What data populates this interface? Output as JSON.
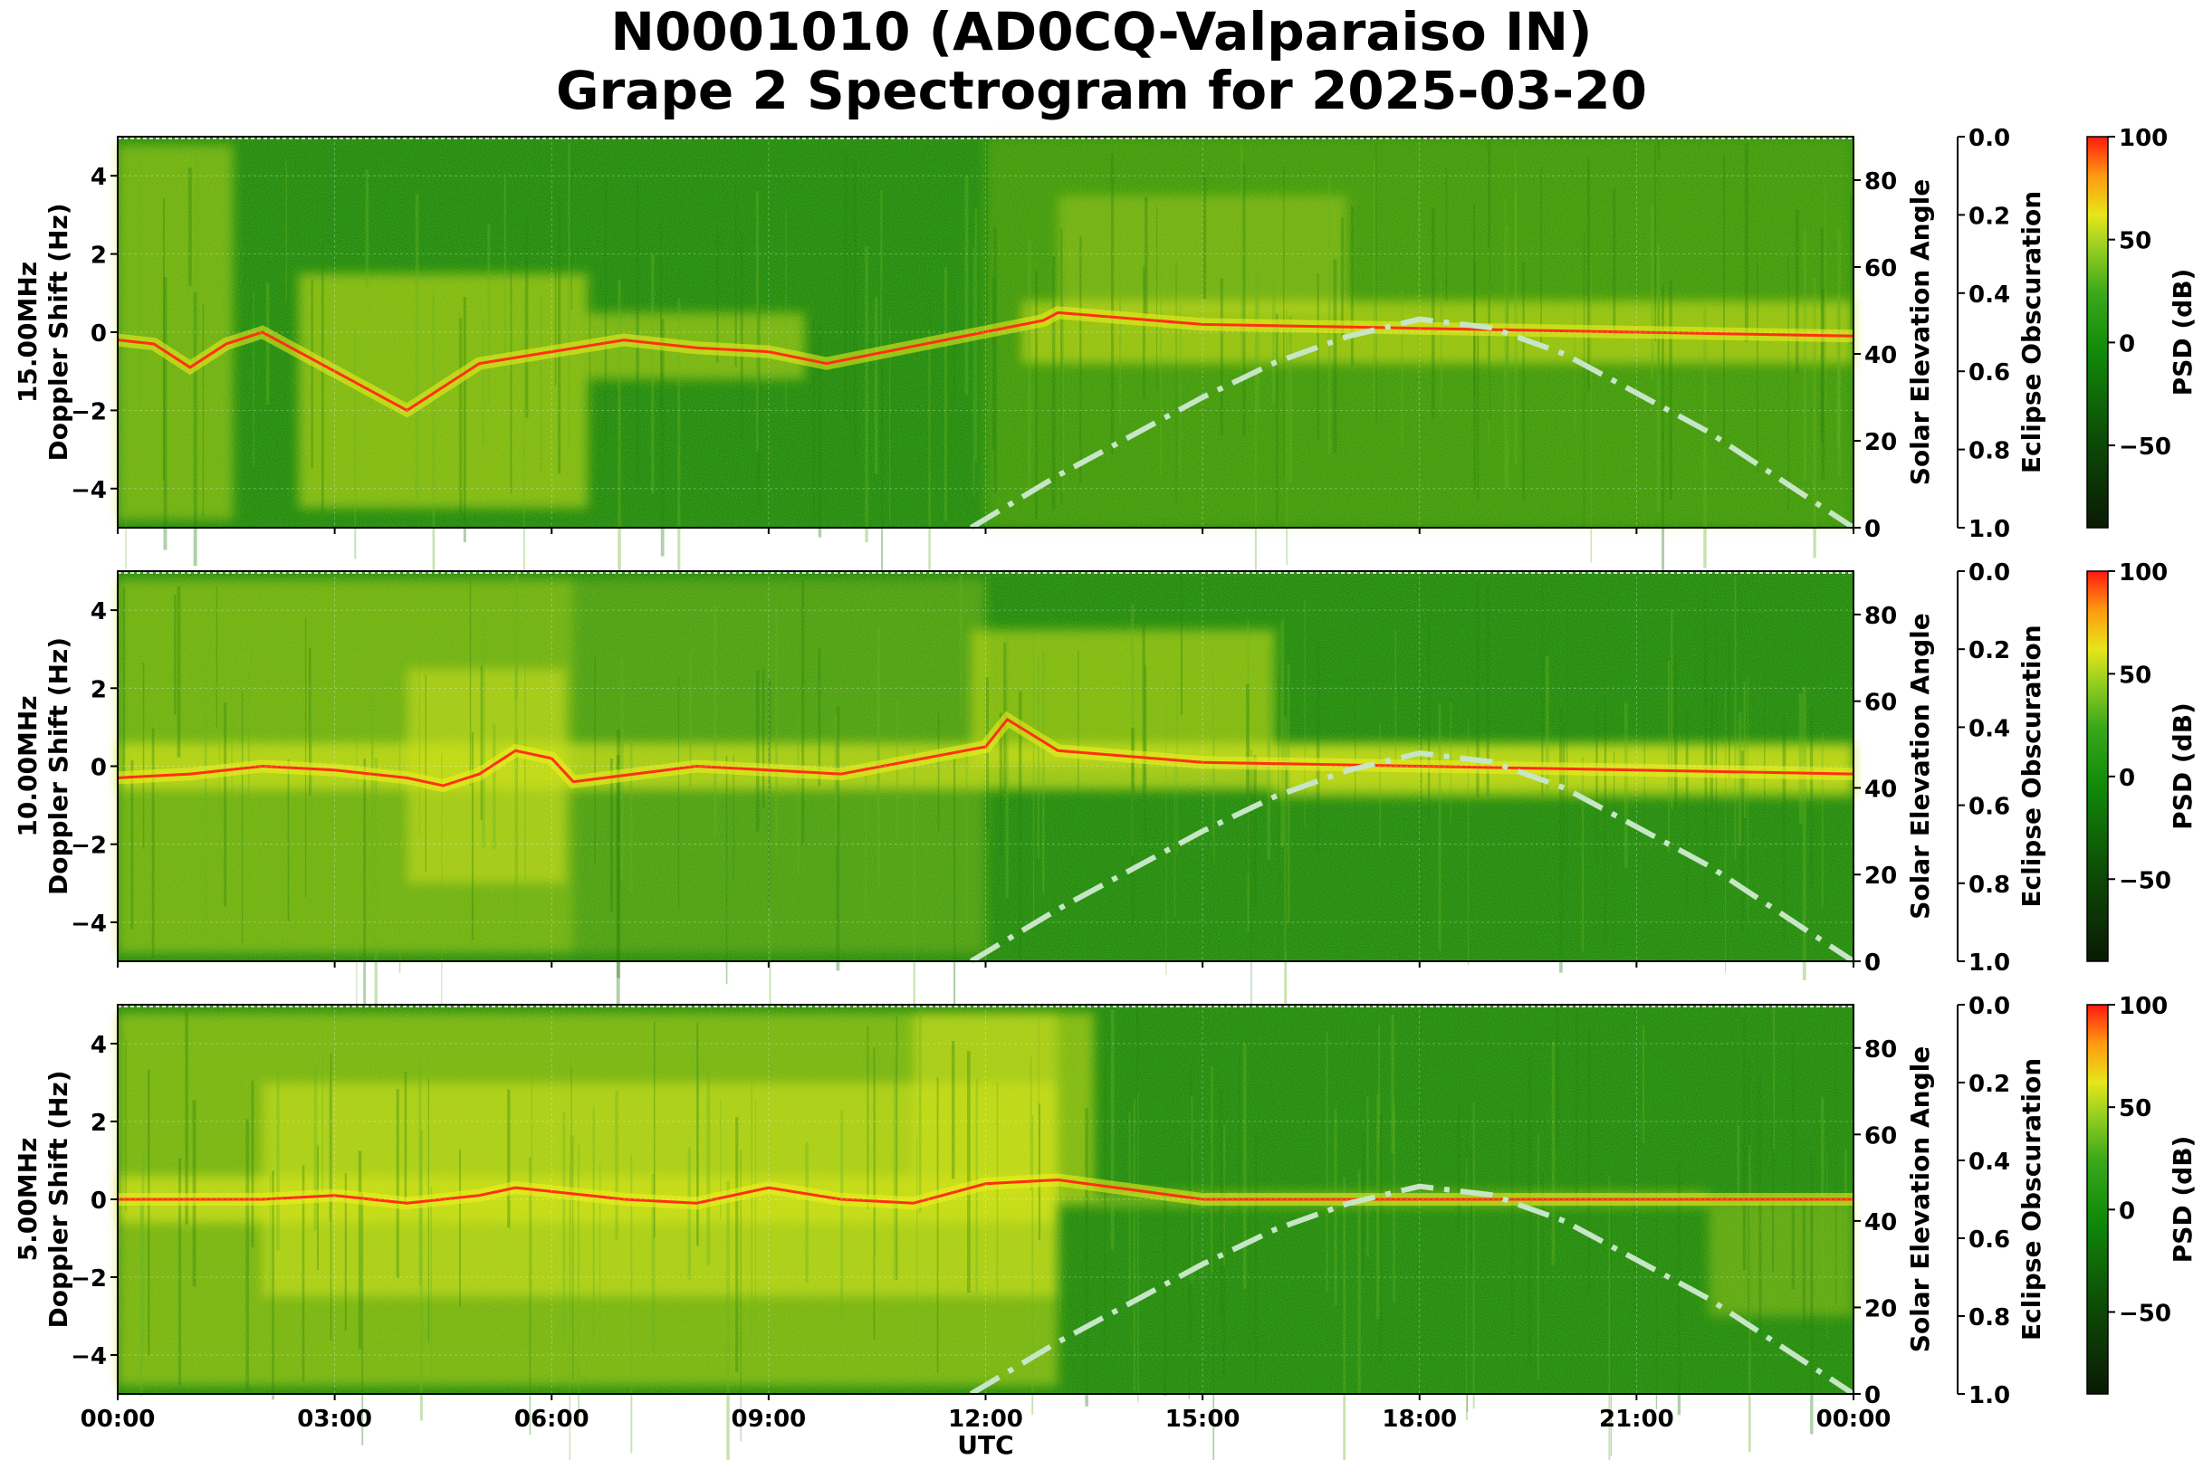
{
  "title_line1": "N0001010 (AD0CQ-Valparaiso IN)",
  "title_line2": "Grape 2 Spectrogram for 2025-03-20",
  "chart_data": [
    {
      "type": "heatmap",
      "panel": "15.00MHz",
      "ylabel": "15.00MHz\nDoppler Shift (Hz)",
      "ylim": [
        -5,
        5
      ],
      "yticks": [
        "−4",
        "−2",
        "0",
        "2",
        "4"
      ],
      "y2label": "Solar Elevation Angle",
      "y2lim": [
        0,
        90
      ],
      "y2ticks": [
        "0",
        "20",
        "40",
        "60",
        "80"
      ],
      "y3label": "Eclipse Obscuration",
      "y3lim": [
        1.0,
        0.0
      ],
      "y3ticks": [
        "0.0",
        "0.2",
        "0.4",
        "0.6",
        "0.8",
        "1.0"
      ],
      "colorbar_label": "PSD (dB)",
      "colorbar_range": [
        -90,
        100
      ],
      "colorbar_ticks": [
        "100",
        "50",
        "0",
        "−50"
      ],
      "solar_elevation": {
        "x_hours": [
          11.8,
          12,
          13,
          14,
          15,
          16,
          17,
          18,
          19,
          20,
          21,
          22,
          23,
          24
        ],
        "y_deg": [
          0,
          2,
          12,
          21,
          30,
          38,
          44,
          48,
          46,
          40,
          31,
          22,
          11,
          0
        ]
      },
      "doppler_trace": {
        "x_hours": [
          0,
          0.5,
          1,
          1.5,
          2,
          3,
          4,
          5,
          6,
          7,
          8,
          9,
          9.8,
          12.8,
          13,
          15,
          18,
          21,
          24
        ],
        "y_hz": [
          -0.2,
          -0.3,
          -0.9,
          -0.3,
          0,
          -1.0,
          -2.0,
          -0.8,
          -0.5,
          -0.2,
          -0.4,
          -0.5,
          -0.8,
          0.3,
          0.5,
          0.2,
          0.1,
          0,
          -0.1
        ]
      }
    },
    {
      "type": "heatmap",
      "panel": "10.00MHz",
      "ylabel": "10.00MHz\nDoppler Shift (Hz)",
      "ylim": [
        -5,
        5
      ],
      "yticks": [
        "−4",
        "−2",
        "0",
        "2",
        "4"
      ],
      "y2label": "Solar Elevation Angle",
      "y2lim": [
        0,
        90
      ],
      "y2ticks": [
        "0",
        "20",
        "40",
        "60",
        "80"
      ],
      "y3label": "Eclipse Obscuration",
      "y3lim": [
        1.0,
        0.0
      ],
      "y3ticks": [
        "0.0",
        "0.2",
        "0.4",
        "0.6",
        "0.8",
        "1.0"
      ],
      "colorbar_label": "PSD (dB)",
      "colorbar_range": [
        -90,
        100
      ],
      "colorbar_ticks": [
        "100",
        "50",
        "0",
        "−50"
      ],
      "solar_elevation": {
        "x_hours": [
          11.8,
          12,
          13,
          14,
          15,
          16,
          17,
          18,
          19,
          20,
          21,
          22,
          23,
          24
        ],
        "y_deg": [
          0,
          2,
          12,
          21,
          30,
          38,
          44,
          48,
          46,
          40,
          31,
          22,
          11,
          0
        ]
      },
      "doppler_trace": {
        "x_hours": [
          0,
          1,
          2,
          3,
          4,
          4.5,
          5,
          5.5,
          6,
          6.3,
          8,
          10,
          12,
          12.3,
          13,
          15,
          18,
          21,
          24
        ],
        "y_hz": [
          -0.3,
          -0.2,
          0,
          -0.1,
          -0.3,
          -0.5,
          -0.2,
          0.4,
          0.2,
          -0.4,
          0,
          -0.2,
          0.5,
          1.2,
          0.4,
          0.1,
          0,
          -0.1,
          -0.2
        ]
      }
    },
    {
      "type": "heatmap",
      "panel": "5.00MHz",
      "ylabel": "5.00MHz\nDoppler Shift (Hz)",
      "ylim": [
        -5,
        5
      ],
      "yticks": [
        "−4",
        "−2",
        "0",
        "2",
        "4"
      ],
      "y2label": "Solar Elevation Angle",
      "y2lim": [
        0,
        90
      ],
      "y2ticks": [
        "0",
        "20",
        "40",
        "60",
        "80"
      ],
      "y3label": "Eclipse Obscuration",
      "y3lim": [
        1.0,
        0.0
      ],
      "y3ticks": [
        "0.0",
        "0.2",
        "0.4",
        "0.6",
        "0.8",
        "1.0"
      ],
      "colorbar_label": "PSD (dB)",
      "colorbar_range": [
        -90,
        100
      ],
      "colorbar_ticks": [
        "100",
        "50",
        "0",
        "−50"
      ],
      "xlabel": "UTC",
      "xticks": [
        "00:00",
        "03:00",
        "06:00",
        "09:00",
        "12:00",
        "15:00",
        "18:00",
        "21:00",
        "00:00"
      ],
      "solar_elevation": {
        "x_hours": [
          11.8,
          12,
          13,
          14,
          15,
          16,
          17,
          18,
          19,
          20,
          21,
          22,
          23,
          24
        ],
        "y_deg": [
          0,
          2,
          12,
          21,
          30,
          38,
          44,
          48,
          46,
          40,
          31,
          22,
          11,
          0
        ]
      },
      "doppler_trace": {
        "x_hours": [
          0,
          2,
          3,
          4,
          5,
          5.5,
          6,
          7,
          8,
          9,
          10,
          11,
          12,
          13,
          15,
          18,
          21,
          24
        ],
        "y_hz": [
          0,
          0,
          0.1,
          -0.1,
          0.1,
          0.3,
          0.2,
          0,
          -0.1,
          0.3,
          0,
          -0.1,
          0.4,
          0.5,
          0,
          0,
          0,
          0
        ]
      }
    }
  ],
  "colors": {
    "background_green": "#1f8a10",
    "activity_yellow": "#cfe018",
    "trace_red": "#ff3010",
    "solar_line": "#c6e6c6"
  }
}
